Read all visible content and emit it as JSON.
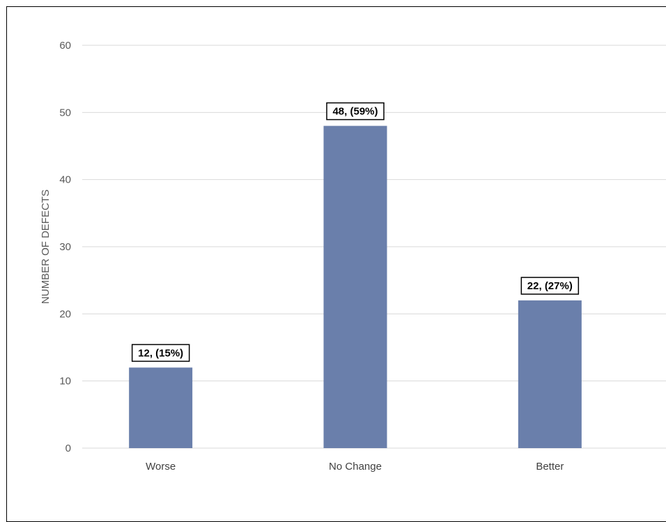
{
  "chart_data": {
    "type": "bar",
    "categories": [
      "Worse",
      "No Change",
      "Better"
    ],
    "values": [
      12,
      48,
      22
    ],
    "data_labels": [
      "12, (15%)",
      "48, (59%)",
      "22, (27%)"
    ],
    "title": "",
    "xlabel": "",
    "ylabel": "NUMBER OF DEFECTS",
    "ylim": [
      0,
      60
    ],
    "yticks": [
      0,
      10,
      20,
      30,
      40,
      50,
      60
    ],
    "grid": true,
    "legend": "none",
    "colors": {
      "bar": "#6a7fab",
      "grid": "#d9d9d9"
    }
  }
}
